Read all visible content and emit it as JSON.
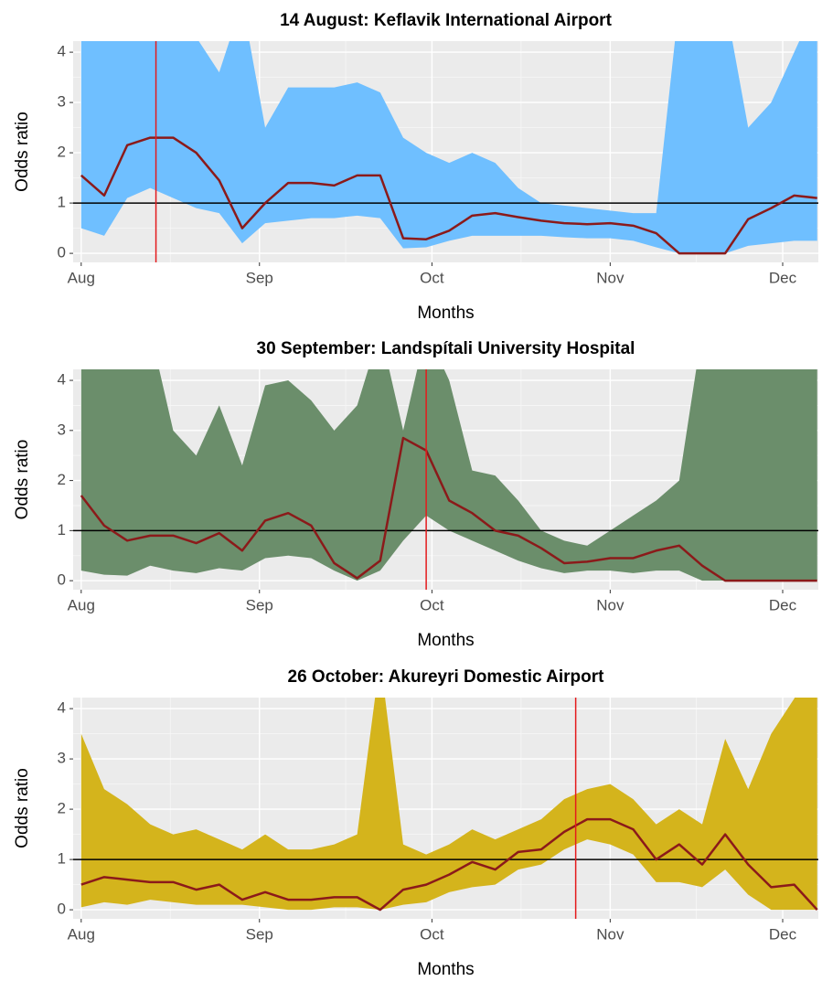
{
  "chart_data": [
    {
      "type": "band-line",
      "title": "14 August: Keflavik International Airport",
      "xlabel": "Months",
      "ylabel": "Odds ratio",
      "x": [
        0,
        4,
        8,
        12,
        16,
        20,
        24,
        28,
        32,
        36,
        40,
        44,
        48,
        52,
        56,
        60,
        64,
        68,
        72,
        76,
        80,
        84,
        88,
        92,
        96,
        100,
        104,
        108,
        112,
        116,
        120,
        124,
        128
      ],
      "values": [
        1.55,
        1.15,
        2.15,
        2.3,
        2.3,
        2.0,
        1.45,
        0.5,
        1.0,
        1.4,
        1.4,
        1.35,
        1.55,
        1.55,
        0.3,
        0.28,
        0.45,
        0.75,
        0.8,
        0.72,
        0.65,
        0.6,
        0.58,
        0.6,
        0.55,
        0.4,
        0,
        0,
        0,
        0.68,
        0.9,
        1.15,
        1.1
      ],
      "lower": [
        0.5,
        0.35,
        1.1,
        1.3,
        1.1,
        0.9,
        0.8,
        0.2,
        0.6,
        0.65,
        0.7,
        0.7,
        0.75,
        0.7,
        0.1,
        0.12,
        0.25,
        0.35,
        0.35,
        0.35,
        0.35,
        0.32,
        0.3,
        0.3,
        0.25,
        0.12,
        0,
        0,
        0,
        0.15,
        0.2,
        0.25,
        0.25
      ],
      "upper": [
        5,
        4.5,
        5,
        5,
        5,
        4.3,
        3.6,
        5,
        2.5,
        3.3,
        3.3,
        3.3,
        3.4,
        3.2,
        2.3,
        2.0,
        1.8,
        2.0,
        1.8,
        1.3,
        1.0,
        0.95,
        0.9,
        0.85,
        0.8,
        0.8,
        5,
        5,
        5,
        2.5,
        3.0,
        4.0,
        5
      ],
      "color": "#8b1a1a",
      "band_color": "#6fbfff",
      "vline": 13,
      "hline": 1,
      "vline_color": "#e41a1c",
      "xlim": [
        -1.4,
        128.2
      ],
      "ylim": [
        -0.18,
        4.22
      ],
      "xticks": [
        {
          "value": 0,
          "label": "Aug"
        },
        {
          "value": 31,
          "label": "Sep"
        },
        {
          "value": 61,
          "label": "Oct"
        },
        {
          "value": 92,
          "label": "Nov"
        },
        {
          "value": 122,
          "label": "Dec"
        }
      ],
      "yticks": [
        0,
        1,
        2,
        3,
        4
      ],
      "grid": true
    },
    {
      "type": "band-line",
      "title": "30 September: Landspítali University Hospital",
      "xlabel": "Months",
      "ylabel": "Odds ratio",
      "x": [
        0,
        4,
        8,
        12,
        16,
        20,
        24,
        28,
        32,
        36,
        40,
        44,
        48,
        52,
        56,
        60,
        64,
        68,
        72,
        76,
        80,
        84,
        88,
        92,
        96,
        100,
        104,
        108,
        112,
        116,
        120,
        124,
        128
      ],
      "values": [
        1.7,
        1.1,
        0.8,
        0.9,
        0.9,
        0.75,
        0.95,
        0.6,
        1.2,
        1.35,
        1.1,
        0.35,
        0.05,
        0.4,
        2.85,
        2.6,
        1.6,
        1.35,
        1.0,
        0.9,
        0.65,
        0.35,
        0.38,
        0.45,
        0.45,
        0.6,
        0.7,
        0.3,
        0,
        0,
        0,
        0,
        0
      ],
      "lower": [
        0.2,
        0.12,
        0.1,
        0.3,
        0.2,
        0.15,
        0.25,
        0.2,
        0.45,
        0.5,
        0.45,
        0.2,
        0,
        0.2,
        0.8,
        1.3,
        1.0,
        0.8,
        0.6,
        0.4,
        0.25,
        0.15,
        0.2,
        0.2,
        0.15,
        0.2,
        0.2,
        0,
        0,
        0,
        0,
        0,
        0
      ],
      "upper": [
        5,
        5,
        5,
        5,
        3.0,
        2.5,
        3.5,
        2.3,
        3.9,
        4.0,
        3.6,
        3.0,
        3.5,
        5,
        3.0,
        5,
        4.0,
        2.2,
        2.1,
        1.6,
        1.0,
        0.8,
        0.7,
        1.0,
        1.3,
        1.6,
        2.0,
        5,
        5,
        5,
        5,
        5,
        5
      ],
      "color": "#8b1a1a",
      "band_color": "#6b8e6b",
      "vline": 60,
      "hline": 1,
      "vline_color": "#e41a1c",
      "xlim": [
        -1.4,
        128.2
      ],
      "ylim": [
        -0.18,
        4.22
      ],
      "xticks": [
        {
          "value": 0,
          "label": "Aug"
        },
        {
          "value": 31,
          "label": "Sep"
        },
        {
          "value": 61,
          "label": "Oct"
        },
        {
          "value": 92,
          "label": "Nov"
        },
        {
          "value": 122,
          "label": "Dec"
        }
      ],
      "yticks": [
        0,
        1,
        2,
        3,
        4
      ],
      "grid": true
    },
    {
      "type": "band-line",
      "title": "26 October: Akureyri Domestic Airport",
      "xlabel": "Months",
      "ylabel": "Odds ratio",
      "x": [
        0,
        4,
        8,
        12,
        16,
        20,
        24,
        28,
        32,
        36,
        40,
        44,
        48,
        52,
        56,
        60,
        64,
        68,
        72,
        76,
        80,
        84,
        88,
        92,
        96,
        100,
        104,
        108,
        112,
        116,
        120,
        124,
        128
      ],
      "values": [
        0.5,
        0.65,
        0.6,
        0.55,
        0.55,
        0.4,
        0.5,
        0.2,
        0.35,
        0.2,
        0.2,
        0.25,
        0.25,
        0,
        0.4,
        0.5,
        0.7,
        0.95,
        0.8,
        1.15,
        1.2,
        1.55,
        1.8,
        1.8,
        1.6,
        1.0,
        1.3,
        0.9,
        1.5,
        0.9,
        0.45,
        0.5,
        0
      ],
      "lower": [
        0.05,
        0.15,
        0.1,
        0.2,
        0.15,
        0.1,
        0.1,
        0.1,
        0.05,
        0,
        0,
        0.05,
        0.05,
        0,
        0.1,
        0.15,
        0.35,
        0.45,
        0.5,
        0.8,
        0.9,
        1.2,
        1.4,
        1.3,
        1.1,
        0.55,
        0.55,
        0.45,
        0.8,
        0.3,
        0,
        0,
        0
      ],
      "upper": [
        3.5,
        2.4,
        2.1,
        1.7,
        1.5,
        1.6,
        1.4,
        1.2,
        1.5,
        1.2,
        1.2,
        1.3,
        1.5,
        5,
        1.3,
        1.1,
        1.3,
        1.6,
        1.4,
        1.6,
        1.8,
        2.2,
        2.4,
        2.5,
        2.2,
        1.7,
        2.0,
        1.7,
        3.4,
        2.4,
        3.5,
        4.2,
        5
      ],
      "color": "#8b1a1a",
      "band_color": "#d4b41c",
      "vline": 86,
      "hline": 1,
      "vline_color": "#e41a1c",
      "xlim": [
        -1.4,
        128.2
      ],
      "ylim": [
        -0.18,
        4.22
      ],
      "xticks": [
        {
          "value": 0,
          "label": "Aug"
        },
        {
          "value": 31,
          "label": "Sep"
        },
        {
          "value": 61,
          "label": "Oct"
        },
        {
          "value": 92,
          "label": "Nov"
        },
        {
          "value": 122,
          "label": "Dec"
        }
      ],
      "yticks": [
        0,
        1,
        2,
        3,
        4
      ],
      "grid": true
    }
  ]
}
